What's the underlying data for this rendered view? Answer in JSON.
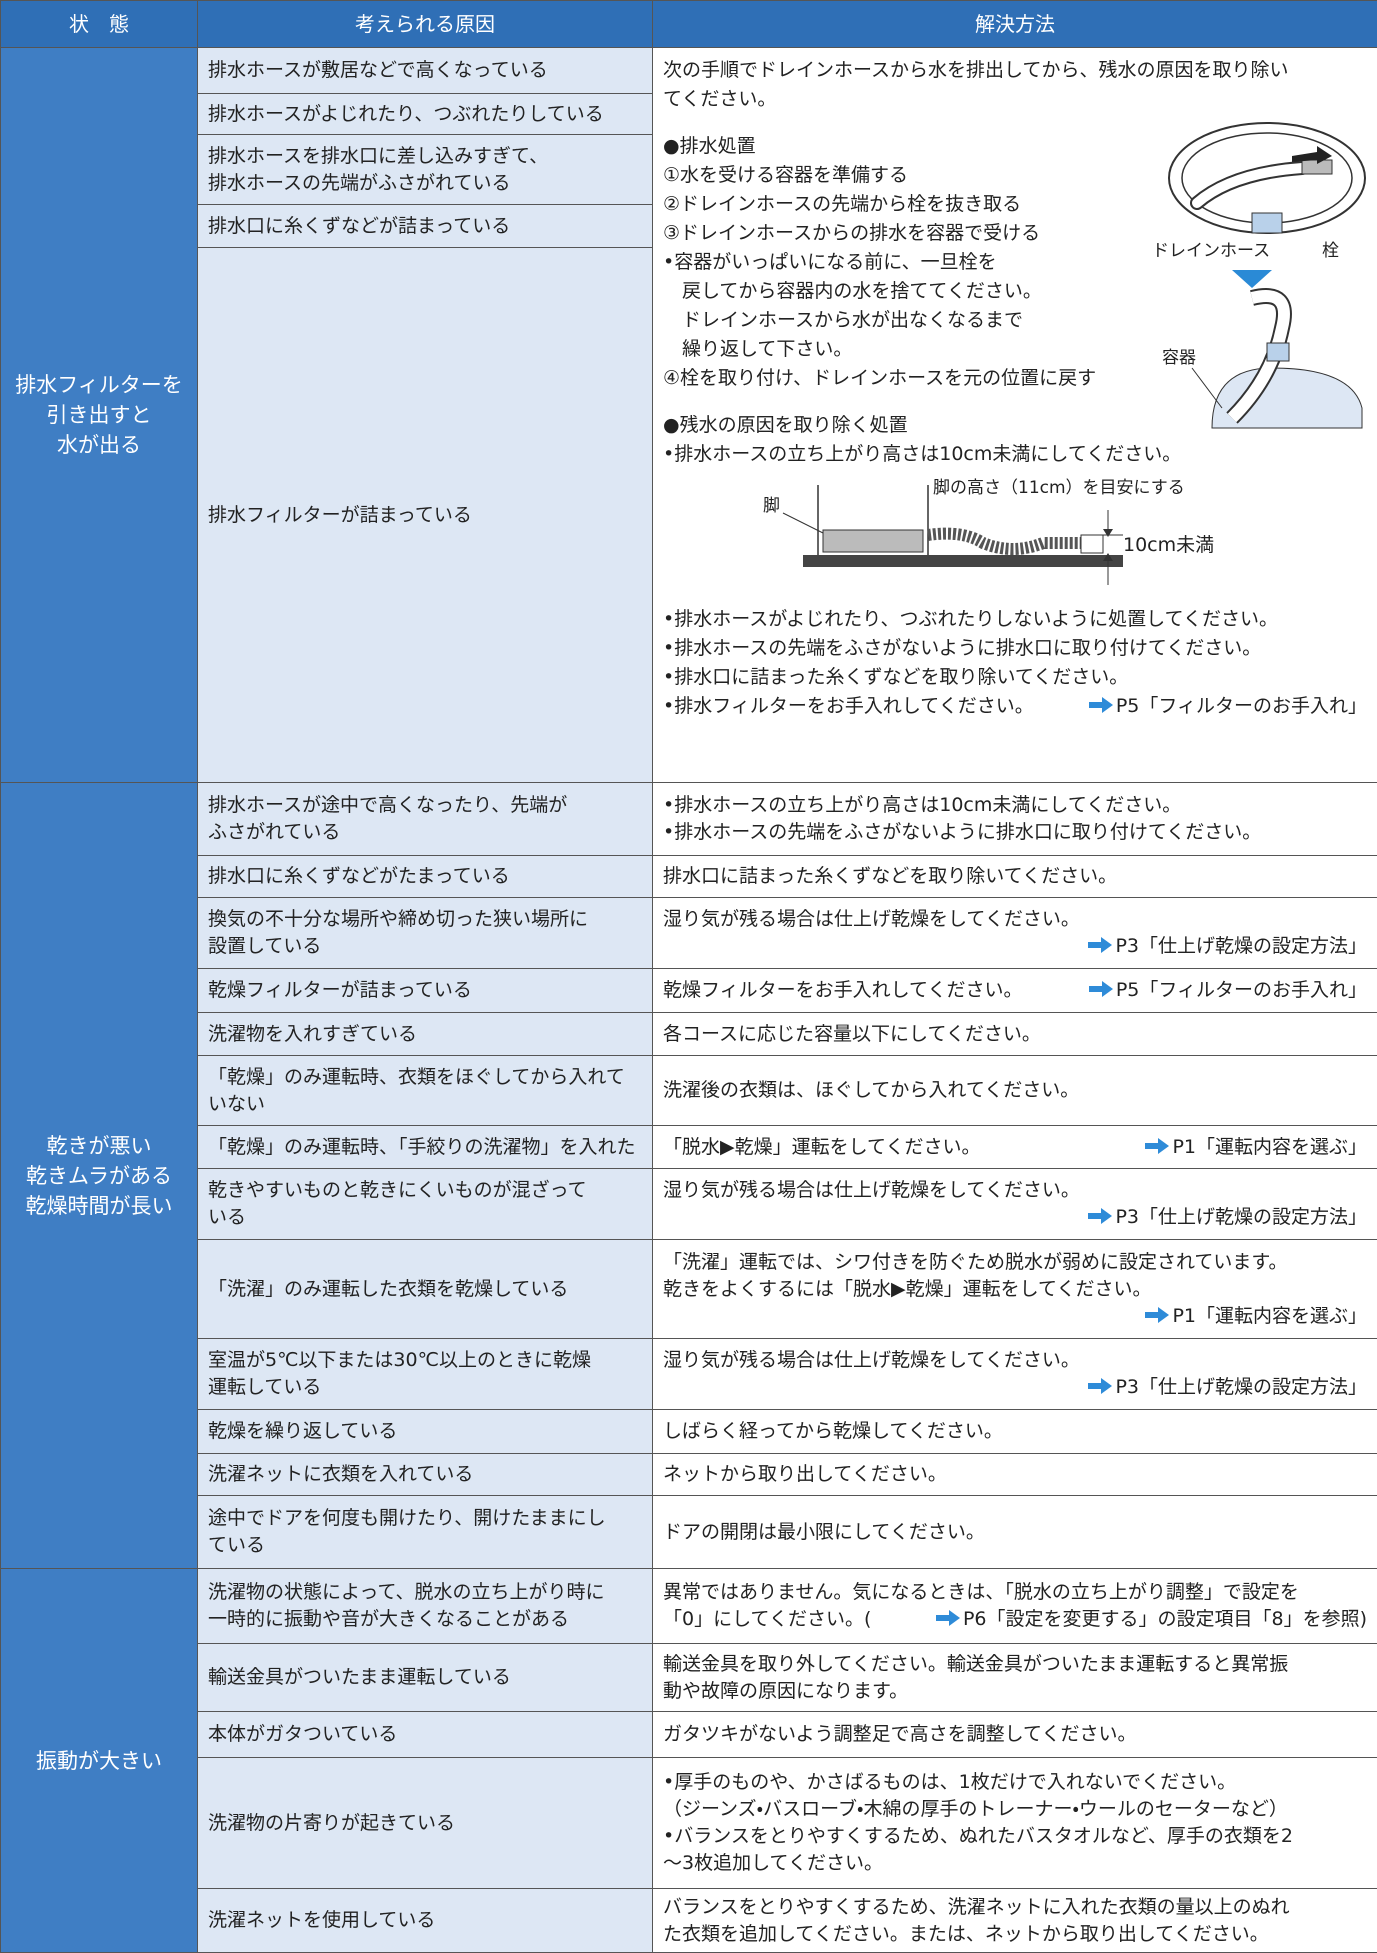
{
  "header": [
    "状　態",
    "考えられる原因",
    "解決方法"
  ],
  "groups": [
    {
      "state": [
        "排水フィルターを",
        "引き出すと",
        "水が出る"
      ],
      "rows": [
        {
          "cause": [
            "排水ホースが敷居などで高くなっている"
          ]
        },
        {
          "cause": [
            "排水ホースがよじれたり、つぶれたりしている"
          ]
        },
        {
          "cause": [
            "排水ホースを排水口に差し込みすぎて、",
            "排水ホースの先端がふさがれている"
          ]
        },
        {
          "cause": [
            "排水口に糸くずなどが詰まっている"
          ]
        },
        {
          "cause": [
            "排水フィルターが詰まっている"
          ]
        }
      ],
      "solution": {
        "intro": [
          "次の手順でドレインホースから水を排出してから、残水の原因を取り除い",
          "てください。"
        ],
        "steps": {
          "heading": "●排水処置",
          "lines": [
            "①水を受ける容器を準備する",
            "②ドレインホースの先端から栓を抜き取る",
            "③ドレインホースからの排水を容器で受ける",
            "•容器がいっぱいになる前に、一旦栓を",
            "　戻してから容器内の水を捨ててください。",
            "　ドレインホースから水が出なくなるまで",
            "　繰り返して下さい。",
            "④栓を取り付け、ドレインホースを元の位置に戻す"
          ]
        },
        "figure1": [
          "ドレインホース",
          "栓",
          "容器"
        ],
        "remedy": {
          "heading": "●残水の原因を取り除く処置",
          "lines": [
            "•排水ホースの立ち上がり高さは10cm未満にしてください。"
          ]
        },
        "figure2": [
          "脚",
          "脚の高さ（11cm）を目安にする",
          "10cm未満"
        ],
        "after": [
          "•排水ホースがよじれたり、つぶれたりしないように処置してください。",
          "•排水ホースの先端をふさがないように排水口に取り付けてください。",
          "•排水口に詰まった糸くずなどを取り除いてください。",
          {
            "text": "•排水フィルターをお手入れしてください。",
            "ref": "P5「フィルターのお手入れ」"
          }
        ]
      }
    },
    {
      "state": [
        "乾きが悪い",
        "乾きムラがある",
        "乾燥時間が長い"
      ],
      "rows": [
        {
          "cause": [
            "排水ホースが途中で高くなったり、先端が",
            "ふさがれている"
          ],
          "solution": [
            "•排水ホースの立ち上がり高さは10cm未満にしてください。",
            "•排水ホースの先端をふさがないように排水口に取り付けてください。"
          ]
        },
        {
          "cause": [
            "排水口に糸くずなどがたまっている"
          ],
          "solution": [
            "排水口に詰まった糸くずなどを取り除いてください。"
          ]
        },
        {
          "cause": [
            "換気の不十分な場所や締め切った狭い場所に",
            "設置している"
          ],
          "solution": [
            "湿り気が残る場合は仕上げ乾燥をしてください。",
            {
              "ref": "P3「仕上げ乾燥の設定方法」"
            }
          ]
        },
        {
          "cause": [
            "乾燥フィルターが詰まっている"
          ],
          "solution": [
            {
              "text": "乾燥フィルターをお手入れしてください。",
              "ref": "P5「フィルターのお手入れ」"
            }
          ]
        },
        {
          "cause": [
            "洗濯物を入れすぎている"
          ],
          "solution": [
            "各コースに応じた容量以下にしてください。"
          ]
        },
        {
          "cause": [
            "「乾燥」のみ運転時、衣類をほぐしてから入れて",
            "いない"
          ],
          "solution": [
            "洗濯後の衣類は、ほぐしてから入れてください。"
          ]
        },
        {
          "cause": [
            "「乾燥」のみ運転時、「手絞りの洗濯物」を入れた"
          ],
          "solution": [
            {
              "text": "「脱水▶乾燥」運転をしてください。",
              "ref": "P1「運転内容を選ぶ」"
            }
          ]
        },
        {
          "cause": [
            "乾きやすいものと乾きにくいものが混ざって",
            "いる"
          ],
          "solution": [
            "湿り気が残る場合は仕上げ乾燥をしてください。",
            {
              "ref": "P3「仕上げ乾燥の設定方法」"
            }
          ]
        },
        {
          "cause": [
            "「洗濯」のみ運転した衣類を乾燥している"
          ],
          "solution": [
            "「洗濯」運転では、シワ付きを防ぐため脱水が弱めに設定されています。",
            "乾きをよくするには「脱水▶乾燥」運転をしてください。",
            {
              "ref": "P1「運転内容を選ぶ」"
            }
          ]
        },
        {
          "cause": [
            "室温が5℃以下または30℃以上のときに乾燥",
            "運転している"
          ],
          "solution": [
            "湿り気が残る場合は仕上げ乾燥をしてください。",
            {
              "ref": "P3「仕上げ乾燥の設定方法」"
            }
          ]
        },
        {
          "cause": [
            "乾燥を繰り返している"
          ],
          "solution": [
            "しばらく経ってから乾燥してください。"
          ]
        },
        {
          "cause": [
            "洗濯ネットに衣類を入れている"
          ],
          "solution": [
            "ネットから取り出してください。"
          ]
        },
        {
          "cause": [
            "途中でドアを何度も開けたり、開けたままにし",
            "ている"
          ],
          "solution": [
            "ドアの開閉は最小限にしてください。"
          ]
        }
      ]
    },
    {
      "state": [
        "振動が大きい"
      ],
      "rows": [
        {
          "cause": [
            "洗濯物の状態によって、脱水の立ち上がり時に",
            "一時的に振動や音が大きくなることがある"
          ],
          "solution": [
            "異常ではありません。気になるときは、「脱水の立ち上がり調整」で設定を",
            {
              "text": "「0」にしてください。(",
              "ref": "P6「設定を変更する」の設定項目「8」を参照)"
            }
          ]
        },
        {
          "cause": [
            "輸送金具がついたまま運転している"
          ],
          "solution": [
            "輸送金具を取り外してください。輸送金具がついたまま運転すると異常振",
            "動や故障の原因になります。"
          ]
        },
        {
          "cause": [
            "本体がガタついている"
          ],
          "solution": [
            "ガタツキがないよう調整足で高さを調整してください。"
          ]
        },
        {
          "cause": [
            "洗濯物の片寄りが起きている"
          ],
          "solution": [
            "•厚手のものや、かさばるものは、1枚だけで入れないでください。",
            "（ジーンズ・バスローブ・木綿の厚手のトレーナー・ウールのセーターなど）",
            "•バランスをとりやすくするため、ぬれたバスタオルなど、厚手の衣類を2",
            "〜3枚追加してください。"
          ]
        },
        {
          "cause": [
            "洗濯ネットを使用している"
          ],
          "solution": [
            "バランスをとりやすくするため、洗濯ネットに入れた衣類の量以上のぬれ",
            "た衣類を追加してください。または、ネットから取り出してください。"
          ]
        }
      ]
    }
  ]
}
